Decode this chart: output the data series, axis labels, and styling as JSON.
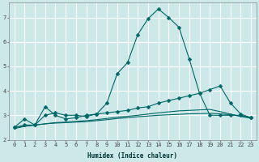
{
  "bg_color": "#cce8e8",
  "grid_color": "#ffffff",
  "line_color": "#006666",
  "xlabel": "Humidex (Indice chaleur)",
  "ylim": [
    2,
    7.6
  ],
  "xlim": [
    -0.5,
    23.5
  ],
  "yticks": [
    2,
    3,
    4,
    5,
    6,
    7
  ],
  "xticks": [
    0,
    1,
    2,
    3,
    4,
    5,
    6,
    7,
    8,
    9,
    10,
    11,
    12,
    13,
    14,
    15,
    16,
    17,
    18,
    19,
    20,
    21,
    22,
    23
  ],
  "series": [
    {
      "x": [
        0,
        1,
        2,
        3,
        4,
        5,
        6,
        7,
        8,
        9,
        10,
        11,
        12,
        13,
        14,
        15,
        16,
        17,
        18,
        19,
        20,
        21,
        22,
        23
      ],
      "y": [
        2.5,
        2.85,
        2.6,
        3.35,
        3.0,
        2.85,
        2.9,
        3.0,
        3.05,
        3.5,
        4.7,
        5.15,
        6.3,
        6.95,
        7.35,
        7.0,
        6.6,
        5.3,
        3.9,
        3.0,
        3.0,
        3.0,
        3.0,
        2.9
      ],
      "marker": "D",
      "ms": 2.5
    },
    {
      "x": [
        0,
        1,
        2,
        3,
        4,
        5,
        6,
        7,
        8,
        9,
        10,
        11,
        12,
        13,
        14,
        15,
        16,
        17,
        18,
        19,
        20,
        21,
        22,
        23
      ],
      "y": [
        2.5,
        2.6,
        2.6,
        3.0,
        3.1,
        3.0,
        3.0,
        2.95,
        3.05,
        3.1,
        3.15,
        3.2,
        3.3,
        3.35,
        3.5,
        3.6,
        3.7,
        3.8,
        3.9,
        4.05,
        4.2,
        3.5,
        3.05,
        2.9
      ],
      "marker": "D",
      "ms": 2.5
    },
    {
      "x": [
        0,
        1,
        2,
        3,
        4,
        5,
        6,
        7,
        8,
        9,
        10,
        11,
        12,
        13,
        14,
        15,
        16,
        17,
        18,
        19,
        20,
        21,
        22,
        23
      ],
      "y": [
        2.5,
        2.55,
        2.6,
        2.65,
        2.7,
        2.72,
        2.75,
        2.78,
        2.82,
        2.87,
        2.92,
        2.96,
        3.0,
        3.05,
        3.1,
        3.14,
        3.18,
        3.2,
        3.22,
        3.24,
        3.15,
        3.05,
        2.95,
        2.88
      ],
      "marker": null,
      "ms": 0
    },
    {
      "x": [
        0,
        1,
        2,
        3,
        4,
        5,
        6,
        7,
        8,
        9,
        10,
        11,
        12,
        13,
        14,
        15,
        16,
        17,
        18,
        19,
        20,
        21,
        22,
        23
      ],
      "y": [
        2.45,
        2.55,
        2.6,
        2.65,
        2.68,
        2.7,
        2.72,
        2.74,
        2.78,
        2.82,
        2.87,
        2.9,
        2.94,
        2.97,
        3.0,
        3.02,
        3.04,
        3.06,
        3.07,
        3.08,
        3.06,
        3.02,
        2.97,
        2.9
      ],
      "marker": null,
      "ms": 0
    }
  ],
  "axis_fontsize": 5.5,
  "tick_fontsize": 5.0,
  "xlabel_fontsize": 5.5
}
